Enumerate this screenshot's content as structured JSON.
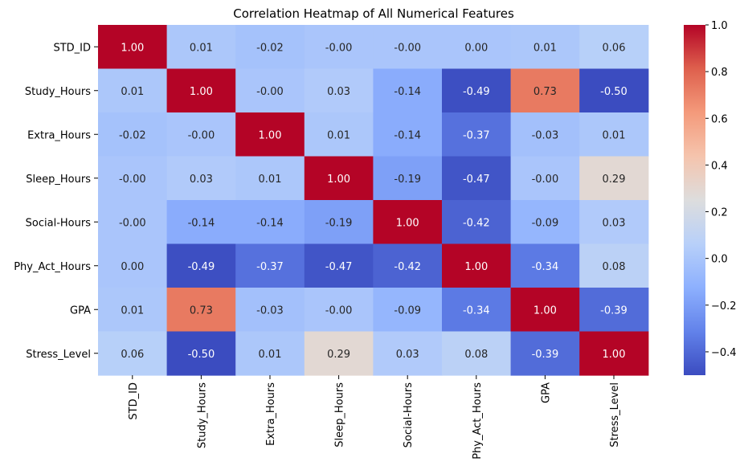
{
  "chart_data": {
    "type": "heatmap",
    "title": "Correlation Heatmap of All Numerical Features",
    "xlabel": "",
    "ylabel": "",
    "rows": [
      "STD_ID",
      "Study_Hours",
      "Extra_Hours",
      "Sleep_Hours",
      "Social-Hours",
      "Phy_Act_Hours",
      "GPA",
      "Stress_Level"
    ],
    "columns": [
      "STD_ID",
      "Study_Hours",
      "Extra_Hours",
      "Sleep_Hours",
      "Social-Hours",
      "Phy_Act_Hours",
      "GPA",
      "Stress_Level"
    ],
    "values": [
      [
        1.0,
        0.01,
        -0.02,
        -0.0,
        -0.0,
        0.0,
        0.01,
        0.06
      ],
      [
        0.01,
        1.0,
        -0.0,
        0.03,
        -0.14,
        -0.49,
        0.73,
        -0.5
      ],
      [
        -0.02,
        -0.0,
        1.0,
        0.01,
        -0.14,
        -0.37,
        -0.03,
        0.01
      ],
      [
        -0.0,
        0.03,
        0.01,
        1.0,
        -0.19,
        -0.47,
        -0.0,
        0.29
      ],
      [
        -0.0,
        -0.14,
        -0.14,
        -0.19,
        1.0,
        -0.42,
        -0.09,
        0.03
      ],
      [
        0.0,
        -0.49,
        -0.37,
        -0.47,
        -0.42,
        1.0,
        -0.34,
        0.08
      ],
      [
        0.01,
        0.73,
        -0.03,
        -0.0,
        -0.09,
        -0.34,
        1.0,
        -0.39
      ],
      [
        0.06,
        -0.5,
        0.01,
        0.29,
        0.03,
        0.08,
        -0.39,
        1.0
      ]
    ],
    "value_labels": [
      [
        "1.00",
        "0.01",
        "-0.02",
        "-0.00",
        "-0.00",
        "0.00",
        "0.01",
        "0.06"
      ],
      [
        "0.01",
        "1.00",
        "-0.00",
        "0.03",
        "-0.14",
        "-0.49",
        "0.73",
        "-0.50"
      ],
      [
        "-0.02",
        "-0.00",
        "1.00",
        "0.01",
        "-0.14",
        "-0.37",
        "-0.03",
        "0.01"
      ],
      [
        "-0.00",
        "0.03",
        "0.01",
        "1.00",
        "-0.19",
        "-0.47",
        "-0.00",
        "0.29"
      ],
      [
        "-0.00",
        "-0.14",
        "-0.14",
        "-0.19",
        "1.00",
        "-0.42",
        "-0.09",
        "0.03"
      ],
      [
        "0.00",
        "-0.49",
        "-0.37",
        "-0.47",
        "-0.42",
        "1.00",
        "-0.34",
        "0.08"
      ],
      [
        "0.01",
        "0.73",
        "-0.03",
        "-0.00",
        "-0.09",
        "-0.34",
        "1.00",
        "-0.39"
      ],
      [
        "0.06",
        "-0.50",
        "0.01",
        "0.29",
        "0.03",
        "0.08",
        "-0.39",
        "1.00"
      ]
    ],
    "colormap": "coolwarm",
    "vmin": -0.5,
    "vmax": 1.0,
    "colorbar_ticks": [
      1.0,
      0.8,
      0.6,
      0.4,
      0.2,
      0.0,
      -0.2,
      -0.4
    ],
    "colorbar_tick_labels": [
      "1.0",
      "0.8",
      "0.6",
      "0.4",
      "0.2",
      "0.0",
      "−0.2",
      "−0.4"
    ],
    "grid": false,
    "legend": "colorbar-right"
  }
}
